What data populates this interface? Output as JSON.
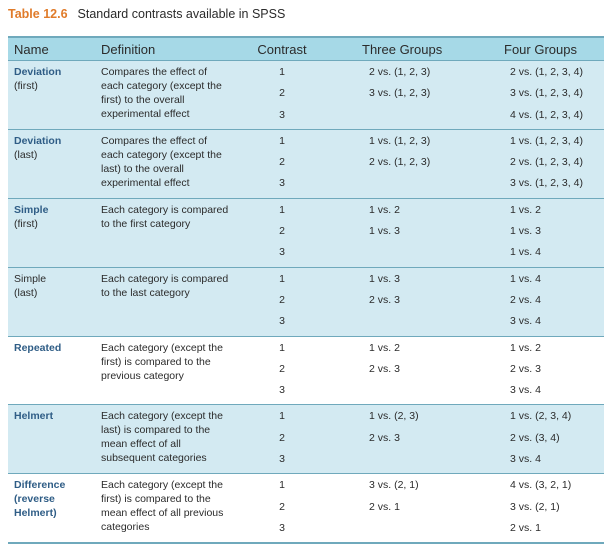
{
  "caption": {
    "number": "Table 12.6",
    "title": "Standard contrasts available in SPSS"
  },
  "headers": {
    "name": "Name",
    "definition": "Definition",
    "contrast": "Contrast",
    "three": "Three Groups",
    "four": "Four Groups"
  },
  "rows": [
    {
      "name_bold": "Deviation",
      "name_rest": "(first)",
      "definition": "Compares the effect of each category (except the first) to the overall experimental effect",
      "contrast": [
        "1",
        "2",
        "3"
      ],
      "three": [
        "2 vs. (1, 2, 3)",
        "3 vs. (1, 2, 3)",
        ""
      ],
      "four": [
        "2 vs. (1, 2, 3, 4)",
        "3 vs. (1, 2, 3, 4)",
        "4 vs. (1, 2, 3, 4)"
      ]
    },
    {
      "name_bold": "Deviation",
      "name_rest": "(last)",
      "definition": "Compares the effect of each category (except the last) to the overall experimental effect",
      "contrast": [
        "1",
        "2",
        "3"
      ],
      "three": [
        "1 vs. (1, 2, 3)",
        "2 vs. (1, 2, 3)",
        ""
      ],
      "four": [
        "1 vs. (1, 2, 3, 4)",
        "2 vs. (1, 2, 3, 4)",
        "3 vs. (1, 2, 3, 4)"
      ]
    },
    {
      "name_bold": "Simple",
      "name_rest": "(first)",
      "definition": "Each category is compared to the first category",
      "contrast": [
        "1",
        "2",
        "3"
      ],
      "three": [
        "1 vs. 2",
        "1 vs. 3",
        ""
      ],
      "four": [
        "1 vs. 2",
        "1 vs. 3",
        "1 vs. 4"
      ]
    },
    {
      "name_bold": "Simple",
      "name_rest": "(last)",
      "definition": "Each category is compared to the last category",
      "contrast": [
        "1",
        "2",
        "3"
      ],
      "three": [
        "1 vs. 3",
        "2 vs. 3",
        ""
      ],
      "four": [
        "1 vs. 4",
        "2 vs. 4",
        "3 vs. 4"
      ]
    },
    {
      "name_bold": "Repeated",
      "name_rest": "",
      "definition": "Each category (except the first) is compared to the previous category",
      "contrast": [
        "1",
        "2",
        "3"
      ],
      "three": [
        "1 vs. 2",
        "2 vs. 3",
        ""
      ],
      "four": [
        "1 vs. 2",
        "2 vs. 3",
        "3 vs. 4"
      ]
    },
    {
      "name_bold": "Helmert",
      "name_rest": "",
      "definition": "Each category (except the last) is compared to the mean effect of all subsequent categories",
      "contrast": [
        "1",
        "2",
        "3"
      ],
      "three": [
        "1 vs. (2, 3)",
        "2 vs. 3",
        ""
      ],
      "four": [
        "1 vs. (2, 3, 4)",
        "2 vs. (3, 4)",
        "3 vs. 4"
      ]
    },
    {
      "name_bold": "Difference (reverse Helmert)",
      "name_rest": "",
      "definition": "Each category (except the first) is compared to the mean effect of all previous categories",
      "contrast": [
        "1",
        "2",
        "3"
      ],
      "three": [
        "3 vs. (2, 1)",
        "2 vs. 1",
        ""
      ],
      "four": [
        "4 vs. (3, 2, 1)",
        "3 vs. (2, 1)",
        "2 vs. 1"
      ]
    }
  ]
}
